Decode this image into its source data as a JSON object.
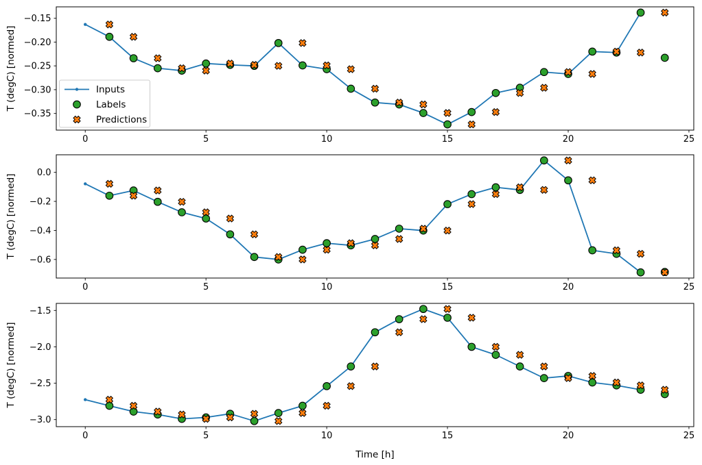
{
  "figure": {
    "xlabel": "Time [h]",
    "ylabel": "T (degC) [normed]",
    "legend": {
      "entries": [
        "Inputs",
        "Labels",
        "Predictions"
      ]
    },
    "colors": {
      "inputs": "#1f77b4",
      "labels": "#2ca02c",
      "predictions": "#ff7f0e",
      "marker_edge": "#000000",
      "axis": "#000000",
      "background": "#ffffff",
      "legend_border": "#cccccc"
    }
  },
  "chart_data": [
    {
      "type": "line",
      "title": "",
      "ylabel": "T (degC) [normed]",
      "xlabel": "",
      "xlim": [
        -1.2,
        25.2
      ],
      "ylim": [
        -0.385,
        -0.126
      ],
      "grid": false,
      "legend_visible": true,
      "legend_position": "center-left",
      "xticks": [
        0,
        5,
        10,
        15,
        20,
        25
      ],
      "xtick_labels": [
        "0",
        "5",
        "10",
        "15",
        "20",
        "25"
      ],
      "yticks": [
        -0.15,
        -0.2,
        -0.25,
        -0.3,
        -0.35
      ],
      "ytick_labels": [
        "−0.15",
        "−0.20",
        "−0.25",
        "−0.30",
        "−0.35"
      ],
      "series": [
        {
          "name": "Inputs",
          "kind": "line",
          "marker": "dot",
          "color": "#1f77b4",
          "x": [
            0,
            1,
            2,
            3,
            4,
            5,
            6,
            7,
            8,
            9,
            10,
            11,
            12,
            13,
            14,
            15,
            16,
            17,
            18,
            19,
            20,
            21,
            22,
            23
          ],
          "y": [
            -0.163,
            -0.189,
            -0.234,
            -0.255,
            -0.26,
            -0.245,
            -0.248,
            -0.25,
            -0.202,
            -0.249,
            -0.257,
            -0.298,
            -0.327,
            -0.331,
            -0.349,
            -0.373,
            -0.347,
            -0.307,
            -0.296,
            -0.263,
            -0.267,
            -0.22,
            -0.222,
            -0.138
          ]
        },
        {
          "name": "Labels",
          "kind": "scatter",
          "marker": "circle",
          "color": "#2ca02c",
          "x": [
            1,
            2,
            3,
            4,
            5,
            6,
            7,
            8,
            9,
            10,
            11,
            12,
            13,
            14,
            15,
            16,
            17,
            18,
            19,
            20,
            21,
            22,
            23,
            24
          ],
          "y": [
            -0.189,
            -0.234,
            -0.255,
            -0.26,
            -0.245,
            -0.248,
            -0.25,
            -0.202,
            -0.249,
            -0.257,
            -0.298,
            -0.327,
            -0.331,
            -0.349,
            -0.373,
            -0.347,
            -0.307,
            -0.296,
            -0.263,
            -0.267,
            -0.22,
            -0.222,
            -0.138,
            -0.233
          ]
        },
        {
          "name": "Predictions",
          "kind": "scatter",
          "marker": "X",
          "color": "#ff7f0e",
          "x": [
            1,
            2,
            3,
            4,
            5,
            6,
            7,
            8,
            9,
            10,
            11,
            12,
            13,
            14,
            15,
            16,
            17,
            18,
            19,
            20,
            21,
            22,
            23,
            24
          ],
          "y": [
            -0.163,
            -0.189,
            -0.234,
            -0.255,
            -0.26,
            -0.245,
            -0.248,
            -0.25,
            -0.202,
            -0.249,
            -0.257,
            -0.298,
            -0.327,
            -0.331,
            -0.349,
            -0.373,
            -0.347,
            -0.307,
            -0.296,
            -0.263,
            -0.267,
            -0.22,
            -0.222,
            -0.138
          ]
        }
      ]
    },
    {
      "type": "line",
      "title": "",
      "ylabel": "T (degC) [normed]",
      "xlabel": "",
      "xlim": [
        -1.2,
        25.2
      ],
      "ylim": [
        -0.728,
        0.121
      ],
      "grid": false,
      "legend_visible": false,
      "xticks": [
        0,
        5,
        10,
        15,
        20,
        25
      ],
      "xtick_labels": [
        "0",
        "5",
        "10",
        "15",
        "20",
        "25"
      ],
      "yticks": [
        0.0,
        -0.2,
        -0.4,
        -0.6
      ],
      "ytick_labels": [
        "0.0",
        "−0.2",
        "−0.4",
        "−0.6"
      ],
      "series": [
        {
          "name": "Inputs",
          "kind": "line",
          "marker": "dot",
          "color": "#1f77b4",
          "x": [
            0,
            1,
            2,
            3,
            4,
            5,
            6,
            7,
            8,
            9,
            10,
            11,
            12,
            13,
            14,
            15,
            16,
            17,
            18,
            19,
            20,
            21,
            22,
            23
          ],
          "y": [
            -0.079,
            -0.161,
            -0.125,
            -0.203,
            -0.275,
            -0.318,
            -0.427,
            -0.583,
            -0.6,
            -0.533,
            -0.488,
            -0.503,
            -0.459,
            -0.388,
            -0.401,
            -0.219,
            -0.15,
            -0.103,
            -0.121,
            0.082,
            -0.055,
            -0.537,
            -0.561,
            -0.689
          ]
        },
        {
          "name": "Labels",
          "kind": "scatter",
          "marker": "circle",
          "color": "#2ca02c",
          "x": [
            1,
            2,
            3,
            4,
            5,
            6,
            7,
            8,
            9,
            10,
            11,
            12,
            13,
            14,
            15,
            16,
            17,
            18,
            19,
            20,
            21,
            22,
            23,
            24
          ],
          "y": [
            -0.161,
            -0.125,
            -0.203,
            -0.275,
            -0.318,
            -0.427,
            -0.583,
            -0.6,
            -0.533,
            -0.488,
            -0.503,
            -0.459,
            -0.388,
            -0.401,
            -0.219,
            -0.15,
            -0.103,
            -0.121,
            0.082,
            -0.055,
            -0.537,
            -0.561,
            -0.689,
            -0.686
          ]
        },
        {
          "name": "Predictions",
          "kind": "scatter",
          "marker": "X",
          "color": "#ff7f0e",
          "x": [
            1,
            2,
            3,
            4,
            5,
            6,
            7,
            8,
            9,
            10,
            11,
            12,
            13,
            14,
            15,
            16,
            17,
            18,
            19,
            20,
            21,
            22,
            23,
            24
          ],
          "y": [
            -0.079,
            -0.161,
            -0.125,
            -0.203,
            -0.275,
            -0.318,
            -0.427,
            -0.583,
            -0.6,
            -0.533,
            -0.488,
            -0.503,
            -0.459,
            -0.388,
            -0.401,
            -0.219,
            -0.15,
            -0.103,
            -0.121,
            0.082,
            -0.055,
            -0.537,
            -0.561,
            -0.689
          ]
        }
      ]
    },
    {
      "type": "line",
      "title": "",
      "ylabel": "T (degC) [normed]",
      "xlabel": "Time [h]",
      "xlim": [
        -1.2,
        25.2
      ],
      "ylim": [
        -3.097,
        -1.403
      ],
      "grid": false,
      "legend_visible": false,
      "xticks": [
        0,
        5,
        10,
        15,
        20,
        25
      ],
      "xtick_labels": [
        "0",
        "5",
        "10",
        "15",
        "20",
        "25"
      ],
      "yticks": [
        -1.5,
        -2.0,
        -2.5,
        -3.0
      ],
      "ytick_labels": [
        "−1.5",
        "−2.0",
        "−2.5",
        "−3.0"
      ],
      "series": [
        {
          "name": "Inputs",
          "kind": "line",
          "marker": "dot",
          "color": "#1f77b4",
          "x": [
            0,
            1,
            2,
            3,
            4,
            5,
            6,
            7,
            8,
            9,
            10,
            11,
            12,
            13,
            14,
            15,
            16,
            17,
            18,
            19,
            20,
            21,
            22,
            23
          ],
          "y": [
            -2.726,
            -2.81,
            -2.89,
            -2.93,
            -2.99,
            -2.97,
            -2.92,
            -3.02,
            -2.91,
            -2.81,
            -2.54,
            -2.27,
            -1.8,
            -1.62,
            -1.48,
            -1.6,
            -2.0,
            -2.11,
            -2.27,
            -2.43,
            -2.4,
            -2.49,
            -2.53,
            -2.59
          ]
        },
        {
          "name": "Labels",
          "kind": "scatter",
          "marker": "circle",
          "color": "#2ca02c",
          "x": [
            1,
            2,
            3,
            4,
            5,
            6,
            7,
            8,
            9,
            10,
            11,
            12,
            13,
            14,
            15,
            16,
            17,
            18,
            19,
            20,
            21,
            22,
            23,
            24
          ],
          "y": [
            -2.81,
            -2.89,
            -2.93,
            -2.99,
            -2.97,
            -2.92,
            -3.02,
            -2.91,
            -2.81,
            -2.54,
            -2.27,
            -1.8,
            -1.62,
            -1.48,
            -1.6,
            -2.0,
            -2.11,
            -2.27,
            -2.43,
            -2.4,
            -2.49,
            -2.53,
            -2.59,
            -2.65
          ]
        },
        {
          "name": "Predictions",
          "kind": "scatter",
          "marker": "X",
          "color": "#ff7f0e",
          "x": [
            1,
            2,
            3,
            4,
            5,
            6,
            7,
            8,
            9,
            10,
            11,
            12,
            13,
            14,
            15,
            16,
            17,
            18,
            19,
            20,
            21,
            22,
            23,
            24
          ],
          "y": [
            -2.726,
            -2.81,
            -2.89,
            -2.93,
            -2.99,
            -2.97,
            -2.92,
            -3.02,
            -2.91,
            -2.81,
            -2.54,
            -2.27,
            -1.8,
            -1.62,
            -1.48,
            -1.6,
            -2.0,
            -2.11,
            -2.27,
            -2.43,
            -2.4,
            -2.49,
            -2.53,
            -2.59
          ]
        }
      ]
    }
  ]
}
